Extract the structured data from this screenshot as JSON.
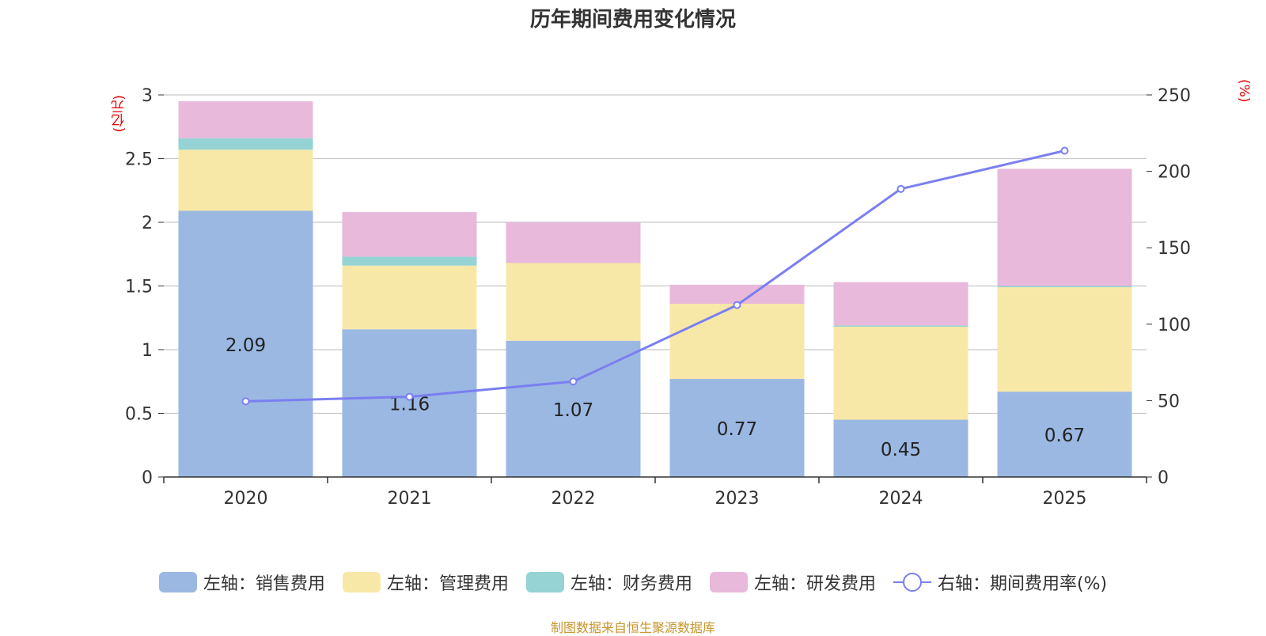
{
  "chart_data": {
    "type": "bar",
    "stacked": true,
    "title": "历年期间费用变化情况",
    "left_unit": "(亿元)",
    "right_unit": "(%)",
    "categories": [
      "2020",
      "2021",
      "2022",
      "2023",
      "2024",
      "2025"
    ],
    "left_axis": {
      "min": 0,
      "max": 3,
      "ticks": [
        "0",
        "0.5",
        "1",
        "1.5",
        "2",
        "2.5",
        "3"
      ]
    },
    "right_axis": {
      "min": 0,
      "max": 250,
      "ticks": [
        "0",
        "50",
        "100",
        "150",
        "200",
        "250"
      ]
    },
    "series": [
      {
        "name": "左轴：销售费用",
        "color": "#9bb8e2",
        "values": [
          2.09,
          1.16,
          1.07,
          0.77,
          0.45,
          0.67
        ],
        "labels": [
          "2.09",
          "1.16",
          "1.07",
          "0.77",
          "0.45",
          "0.67"
        ]
      },
      {
        "name": "左轴：管理费用",
        "color": "#f8e8a8",
        "values": [
          0.48,
          0.5,
          0.61,
          0.59,
          0.73,
          0.82
        ]
      },
      {
        "name": "左轴：财务费用",
        "color": "#95d3d4",
        "values": [
          0.09,
          0.07,
          0.0,
          0.0,
          0.01,
          0.01
        ]
      },
      {
        "name": "左轴：研发费用",
        "color": "#e8b9da",
        "values": [
          0.29,
          0.35,
          0.32,
          0.15,
          0.34,
          0.92
        ]
      }
    ],
    "line": {
      "name": "右轴：期间费用率(%)",
      "color": "#7a7ff0",
      "axis": "right",
      "values": [
        49.5,
        52.5,
        62.5,
        112.5,
        188.5,
        213.5
      ]
    },
    "legend_position": "bottom",
    "grid": true
  },
  "source": "制图数据来自恒生聚源数据库"
}
